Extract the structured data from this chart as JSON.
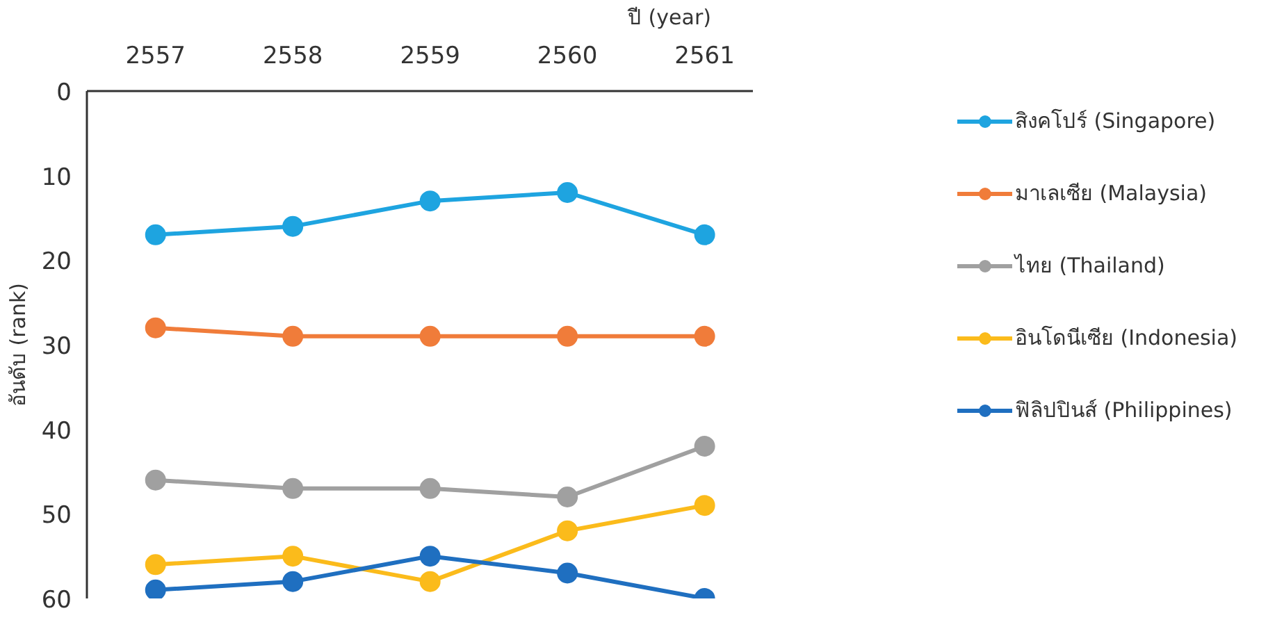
{
  "chart_data": {
    "type": "line",
    "xlabel": "ปี (year)",
    "ylabel": "อันดับ (rank)",
    "categories": [
      "2557",
      "2558",
      "2559",
      "2560",
      "2561"
    ],
    "ylim": [
      60,
      0
    ],
    "yticks": [
      0,
      10,
      20,
      30,
      40,
      50,
      60
    ],
    "grid": false,
    "legend": "right",
    "marker": "circle",
    "line_style": "solid",
    "series": [
      {
        "name": "สิงคโปร์ (Singapore)",
        "color": "#1ea4e0",
        "values": [
          17,
          16,
          13,
          12,
          17
        ]
      },
      {
        "name": "มาเลเซีย (Malaysia)",
        "color": "#f07c3a",
        "values": [
          28,
          29,
          29,
          29,
          29
        ]
      },
      {
        "name": "ไทย (Thailand)",
        "color": "#a0a0a0",
        "values": [
          46,
          47,
          47,
          48,
          42
        ]
      },
      {
        "name": "อินโดนีเซีย (Indonesia)",
        "color": "#fbbb1b",
        "values": [
          56,
          55,
          58,
          52,
          49
        ]
      },
      {
        "name": "ฟิลิปปินส์ (Philippines)",
        "color": "#1f6fc0",
        "values": [
          59,
          58,
          55,
          57,
          60
        ]
      }
    ]
  }
}
